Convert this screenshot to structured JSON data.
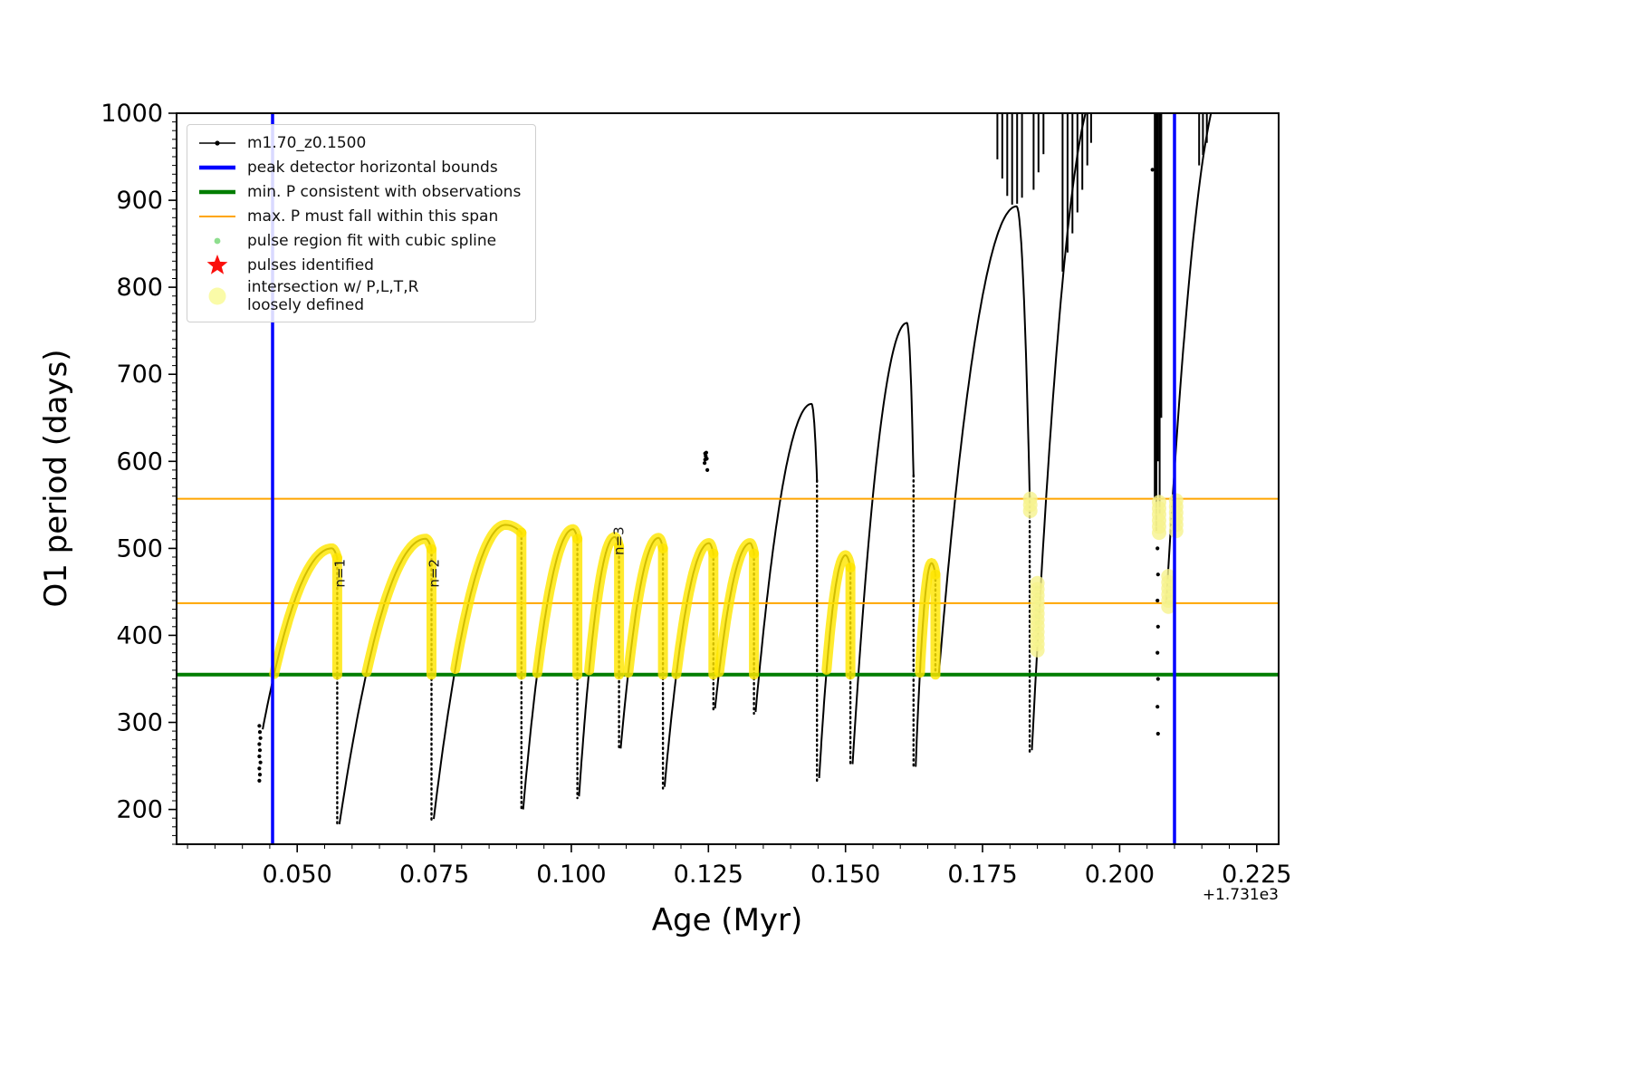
{
  "figure": {
    "xlabel": "Age (Myr)",
    "ylabel": "O1 period (days)",
    "x_offset": "+1.731e3"
  },
  "legend": {
    "position": "upper left",
    "items": [
      {
        "name": "series",
        "label": "m1.70_z0.1500",
        "marker": "line-dot",
        "color": "#000000"
      },
      {
        "name": "peak-bounds",
        "label": "peak detector horizontal bounds",
        "marker": "thick-line",
        "color": "#0000ff"
      },
      {
        "name": "min-period",
        "label": "min. P consistent with observations",
        "marker": "thick-line",
        "color": "#007d00"
      },
      {
        "name": "max-period-span",
        "label": "max. P must fall within this span",
        "marker": "line",
        "color": "#ffa500"
      },
      {
        "name": "spline-fit",
        "label": "pulse region fit with cubic spline",
        "marker": "dot-small",
        "color": "#8ede8e"
      },
      {
        "name": "pulses-identified",
        "label": "pulses identified",
        "marker": "star",
        "color": "#fb0f0c"
      },
      {
        "name": "intersection",
        "label": "intersection w/ P,L,T,R\nloosely defined",
        "marker": "dot-large",
        "color": "#fafba8"
      }
    ]
  },
  "chart_data": {
    "type": "scatter",
    "title": "",
    "xlabel": "Age (Myr)",
    "ylabel": "O1 period (days)",
    "x_axis_offset": "+1.731e3",
    "series_label": "m1.70_z0.1500",
    "xlim": [
      0.028,
      0.229
    ],
    "ylim": [
      160,
      1000
    ],
    "xticks": [
      0.05,
      0.075,
      0.1,
      0.125,
      0.15,
      0.175,
      0.2,
      0.225
    ],
    "xtick_labels": [
      "0.050",
      "0.075",
      "0.100",
      "0.125",
      "0.150",
      "0.175",
      "0.200",
      "0.225"
    ],
    "yticks": [
      200,
      300,
      400,
      500,
      600,
      700,
      800,
      900,
      1000
    ],
    "ytick_labels": [
      "200",
      "300",
      "400",
      "500",
      "600",
      "700",
      "800",
      "900",
      "1000"
    ],
    "x_minor_step": 0.005,
    "y_minor_step": 10,
    "grid": false,
    "colors": {
      "series": "#000000",
      "blue": "#0000ff",
      "green": "#007d00",
      "orange": "#ffa500",
      "yellow": "#ffe600",
      "blob_yellow": "#f6f28d",
      "spline_green": "#8ede8e"
    },
    "vlines_blue_x": [
      0.0455,
      0.21
    ],
    "hline_green_y": 355,
    "hlines_orange_y": [
      437,
      557
    ],
    "annotations": [
      {
        "text": "n=1",
        "x": 0.0586,
        "y": 455,
        "rotation": -90
      },
      {
        "text": "n=2",
        "x": 0.0758,
        "y": 455,
        "rotation": -90
      },
      {
        "text": "n=3",
        "x": 0.1095,
        "y": 492,
        "rotation": -90
      }
    ],
    "pulse_peak_periods_days": [
      500,
      511,
      527,
      522,
      513,
      512,
      506,
      506,
      666,
      492,
      759,
      483,
      893,
      ">1000",
      ">1000"
    ],
    "pulses": [
      {
        "x0": 0.0437,
        "y0": 292,
        "xp": 0.0563,
        "yp": 500,
        "x1": 0.0573,
        "y1": 489,
        "ymin": 180,
        "yellow": true
      },
      {
        "x0": 0.0577,
        "y0": 183,
        "xp": 0.0734,
        "yp": 511,
        "x1": 0.0745,
        "y1": 499,
        "ymin": 186,
        "yellow": true
      },
      {
        "x0": 0.0749,
        "y0": 189,
        "xp": 0.088,
        "yp": 527,
        "x1": 0.0909,
        "y1": 518,
        "ymin": 198,
        "yellow": true
      },
      {
        "x0": 0.0912,
        "y0": 200,
        "xp": 0.1003,
        "yp": 522,
        "x1": 0.1011,
        "y1": 511,
        "ymin": 213,
        "yellow": true
      },
      {
        "x0": 0.1014,
        "y0": 215,
        "xp": 0.1079,
        "yp": 513,
        "x1": 0.1087,
        "y1": 502,
        "ymin": 268,
        "yellow": true
      },
      {
        "x0": 0.109,
        "y0": 270,
        "xp": 0.1159,
        "yp": 512,
        "x1": 0.1167,
        "y1": 500,
        "ymin": 224,
        "yellow": true
      },
      {
        "x0": 0.117,
        "y0": 226,
        "xp": 0.1251,
        "yp": 506,
        "x1": 0.1259,
        "y1": 494,
        "ymin": 314,
        "yellow": true
      },
      {
        "x0": 0.1262,
        "y0": 316,
        "xp": 0.1326,
        "yp": 506,
        "x1": 0.1333,
        "y1": 494,
        "ymin": 310,
        "yellow": true
      },
      {
        "x0": 0.1336,
        "y0": 312,
        "xp": 0.1438,
        "yp": 666,
        "x1": 0.1448,
        "y1": 578,
        "ymin": 232,
        "yellow": false
      },
      {
        "x0": 0.1452,
        "y0": 236,
        "xp": 0.15,
        "yp": 492,
        "x1": 0.1509,
        "y1": 478,
        "ymin": 250,
        "yellow": true
      },
      {
        "x0": 0.1513,
        "y0": 252,
        "xp": 0.1612,
        "yp": 759,
        "x1": 0.1624,
        "y1": 584,
        "ymin": 247,
        "yellow": false
      },
      {
        "x0": 0.1628,
        "y0": 249,
        "xp": 0.1657,
        "yp": 483,
        "x1": 0.1664,
        "y1": 470,
        "ymin": 352,
        "yellow": true
      },
      {
        "x0": 0.167,
        "y0": 353,
        "xp": 0.1812,
        "yp": 893,
        "x1": 0.1836,
        "y1": 560,
        "ymin": 266,
        "yellow": false
      },
      {
        "x0": 0.184,
        "y0": 268,
        "xp": 0.1962,
        "yp": 1030,
        "x1": 0.1962,
        "y1": 1030,
        "ymin": 1030,
        "yellow": false
      },
      {
        "x0": 0.2085,
        "y0": 436,
        "xp": 0.2195,
        "yp": 1040,
        "x1": 0.2195,
        "y1": 1040,
        "ymin": 1040,
        "yellow": false
      }
    ],
    "spikes": [
      [
        0.1777,
        947,
        1000
      ],
      [
        0.1786,
        925,
        1000
      ],
      [
        0.1795,
        905,
        1000
      ],
      [
        0.1804,
        895,
        1000
      ],
      [
        0.1813,
        896,
        1000
      ],
      [
        0.1822,
        903,
        1000
      ],
      [
        0.1843,
        912,
        1000
      ],
      [
        0.1852,
        932,
        1000
      ],
      [
        0.1861,
        953,
        1000
      ],
      [
        0.1896,
        818,
        1000
      ],
      [
        0.1905,
        840,
        1000
      ],
      [
        0.1914,
        862,
        1000
      ],
      [
        0.1923,
        886,
        1000
      ],
      [
        0.1932,
        912,
        1000
      ],
      [
        0.1941,
        940,
        1000
      ],
      [
        0.1948,
        966,
        1000
      ],
      [
        0.2064,
        556,
        1000
      ],
      [
        0.2067,
        520,
        1000
      ],
      [
        0.207,
        600,
        1000
      ],
      [
        0.2073,
        540,
        1000
      ],
      [
        0.2076,
        650,
        1000
      ],
      [
        0.2145,
        940,
        1000
      ],
      [
        0.2152,
        952,
        1000
      ],
      [
        0.2159,
        966,
        1000
      ]
    ],
    "dot_clusters": [
      [
        [
          0.0431,
          233
        ],
        [
          0.0432,
          240
        ],
        [
          0.0431,
          247
        ],
        [
          0.0433,
          254
        ],
        [
          0.0431,
          261
        ],
        [
          0.0432,
          268
        ],
        [
          0.0431,
          275
        ],
        [
          0.0433,
          282
        ],
        [
          0.0432,
          289
        ],
        [
          0.0431,
          296
        ]
      ],
      [
        [
          0.1243,
          598
        ],
        [
          0.1244,
          602
        ],
        [
          0.1245,
          606
        ],
        [
          0.1246,
          610
        ],
        [
          0.1247,
          603
        ],
        [
          0.1244,
          609
        ],
        [
          0.1248,
          590
        ]
      ],
      [
        [
          0.206,
          935
        ]
      ],
      [
        [
          0.2069,
          500
        ],
        [
          0.207,
          470
        ],
        [
          0.2069,
          440
        ],
        [
          0.207,
          410
        ],
        [
          0.2069,
          380
        ],
        [
          0.207,
          350
        ],
        [
          0.2069,
          318
        ],
        [
          0.207,
          287
        ]
      ]
    ],
    "yellow_blobs": [
      {
        "x": 0.1837,
        "y0": 543,
        "y1": 557
      },
      {
        "x": 0.185,
        "y0": 383,
        "y1": 466
      },
      {
        "x": 0.2072,
        "y0": 518,
        "y1": 556
      },
      {
        "x": 0.2089,
        "y0": 433,
        "y1": 468
      },
      {
        "x": 0.2103,
        "y0": 520,
        "y1": 557
      }
    ],
    "green_dot_columns": [
      {
        "x": 0.185,
        "y0": 390,
        "y1": 460
      },
      {
        "x": 0.209,
        "y0": 438,
        "y1": 464
      }
    ]
  }
}
